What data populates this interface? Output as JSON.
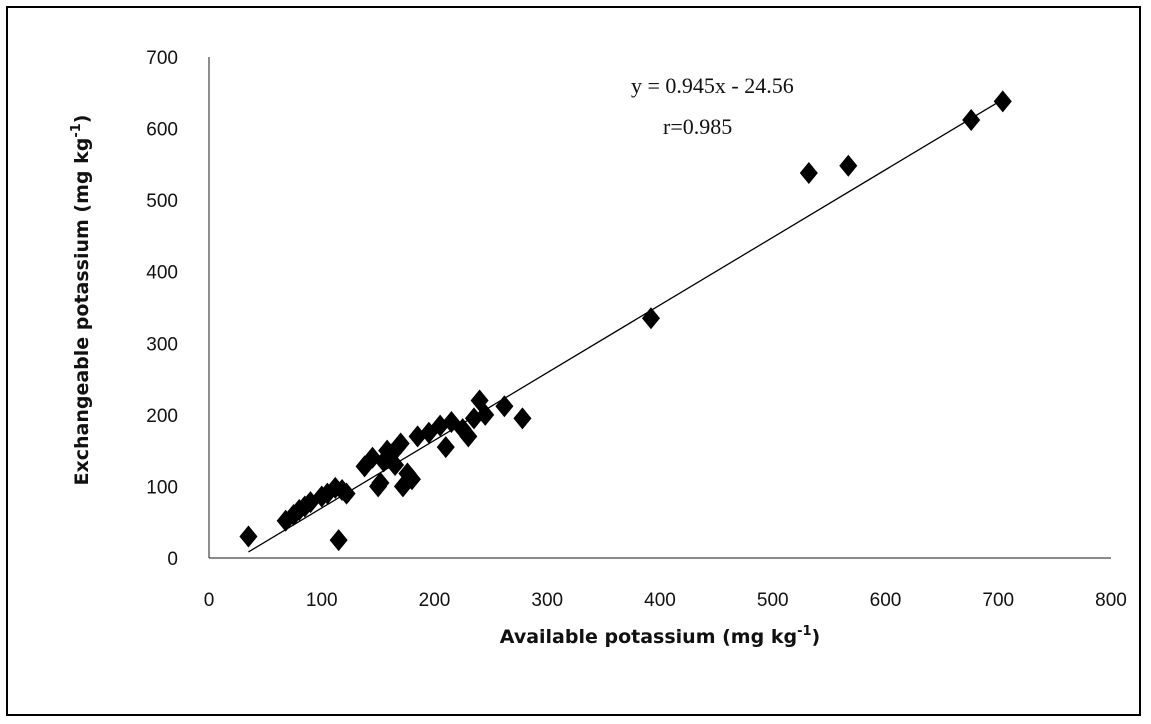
{
  "chart_data": {
    "type": "scatter",
    "title": "",
    "xlabel": "Available potassium (mg kg",
    "xlabel_sup": "-1",
    "xlabel_end": ")",
    "ylabel": "Exchangeable potassium (mg kg",
    "ylabel_sup": "-1",
    "ylabel_end": ")",
    "xlim": [
      0,
      800
    ],
    "ylim": [
      0,
      700
    ],
    "xticks": [
      "0",
      "100",
      "200",
      "300",
      "400",
      "500",
      "600",
      "700",
      "800"
    ],
    "yticks": [
      "0",
      "100",
      "200",
      "300",
      "400",
      "500",
      "600",
      "700"
    ],
    "grid": false,
    "legend": "none",
    "marker": "diamond",
    "marker_color": "#000000",
    "trendline": {
      "slope": 0.945,
      "intercept": -24.56,
      "x_range": [
        35,
        700
      ]
    },
    "annotations": {
      "equation": "y = 0.945x - 24.56",
      "r": "r=0.985"
    },
    "points": [
      [
        35,
        30
      ],
      [
        68,
        52
      ],
      [
        75,
        60
      ],
      [
        80,
        67
      ],
      [
        85,
        72
      ],
      [
        90,
        78
      ],
      [
        100,
        86
      ],
      [
        105,
        90
      ],
      [
        112,
        98
      ],
      [
        118,
        95
      ],
      [
        122,
        90
      ],
      [
        115,
        25
      ],
      [
        138,
        128
      ],
      [
        145,
        140
      ],
      [
        150,
        100
      ],
      [
        152,
        105
      ],
      [
        155,
        135
      ],
      [
        158,
        150
      ],
      [
        162,
        145
      ],
      [
        165,
        130
      ],
      [
        170,
        160
      ],
      [
        172,
        100
      ],
      [
        176,
        118
      ],
      [
        180,
        110
      ],
      [
        185,
        170
      ],
      [
        195,
        175
      ],
      [
        205,
        185
      ],
      [
        210,
        155
      ],
      [
        215,
        190
      ],
      [
        225,
        180
      ],
      [
        230,
        170
      ],
      [
        235,
        195
      ],
      [
        240,
        220
      ],
      [
        245,
        200
      ],
      [
        262,
        212
      ],
      [
        278,
        195
      ],
      [
        392,
        335
      ],
      [
        532,
        538
      ],
      [
        567,
        548
      ],
      [
        676,
        612
      ],
      [
        704,
        638
      ]
    ]
  }
}
